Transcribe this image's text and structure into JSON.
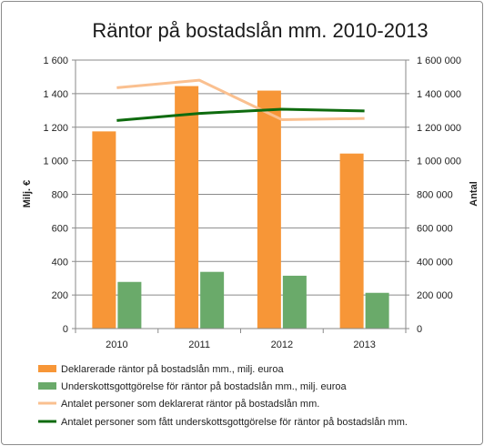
{
  "chart_data": {
    "type": "bar",
    "title": "Räntor på bostadslån mm. 2010-2013",
    "ylabel": "Milj. €",
    "y2label": "Antal",
    "categories": [
      "2010",
      "2011",
      "2012",
      "2013"
    ],
    "ylim": [
      0,
      1600
    ],
    "y2lim": [
      0,
      1600000
    ],
    "yticks": [
      "0",
      "200",
      "400",
      "600",
      "800",
      "1 000",
      "1 200",
      "1 400",
      "1 600"
    ],
    "y2ticks": [
      "0",
      "200 000",
      "400 000",
      "600 000",
      "800 000",
      "1 000 000",
      "1 200 000",
      "1 400 000",
      "1 600 000"
    ],
    "grid": true,
    "legend": "bottom",
    "series": [
      {
        "name": "Deklarerade räntor på bostadslån mm., milj. euroa",
        "type": "bar",
        "axis": "left",
        "color": "#F79637",
        "values": [
          1175,
          1445,
          1418,
          1043
        ]
      },
      {
        "name": "Underskottsgottgörelse för räntor på bostadslån mm., milj. euroa",
        "type": "bar",
        "axis": "left",
        "color": "#6AAA6A",
        "values": [
          278,
          338,
          315,
          213
        ]
      },
      {
        "name": "Antalet personer som deklarerat räntor på bostadslån mm.",
        "type": "line",
        "axis": "right",
        "color": "#FAC090",
        "values": [
          1435000,
          1480000,
          1245000,
          1252000
        ]
      },
      {
        "name": "Antalet personer som fått underskottsgottgörelse för räntor på bostadslån mm.",
        "type": "line",
        "axis": "right",
        "color": "#0E6B0E",
        "values": [
          1240000,
          1282000,
          1307000,
          1297000
        ]
      }
    ]
  }
}
